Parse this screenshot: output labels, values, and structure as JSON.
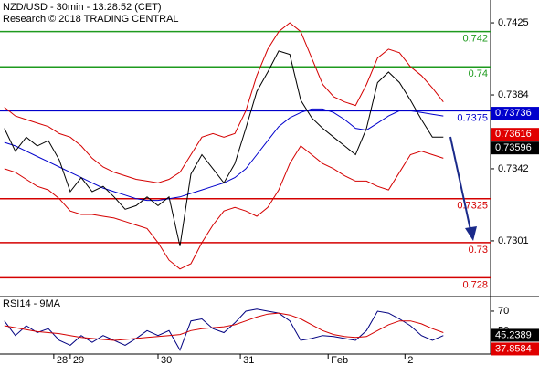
{
  "chart_data": [
    {
      "type": "line",
      "title": "NZD/USD - 30min - 13:28:52 (CET)",
      "subtitle": "Research © 2018 TRADING CENTRAL",
      "x": [
        0,
        1,
        2,
        3,
        4,
        5,
        6,
        7,
        8,
        9,
        10,
        11,
        12,
        13,
        14,
        15,
        16,
        17,
        18,
        19,
        20,
        21,
        22,
        23,
        24,
        25,
        26,
        27,
        28,
        29,
        30,
        31,
        32,
        33,
        34,
        35,
        36,
        37,
        38,
        39,
        40
      ],
      "xlim": [
        -0.4,
        44.3
      ],
      "ylim": [
        0.72693,
        0.7438
      ],
      "yticks": [
        0.7425,
        0.7384,
        0.7342,
        0.7301
      ],
      "series": [
        {
          "color": "#d40000",
          "values": [
            0.7377,
            0.7372,
            0.737,
            0.7368,
            0.7366,
            0.7362,
            0.736,
            0.7355,
            0.7348,
            0.7343,
            0.734,
            0.7338,
            0.7336,
            0.7335,
            0.7334,
            0.7336,
            0.734,
            0.735,
            0.736,
            0.7362,
            0.736,
            0.7362,
            0.7375,
            0.7395,
            0.741,
            0.742,
            0.7425,
            0.742,
            0.7405,
            0.739,
            0.7383,
            0.738,
            0.7378,
            0.739,
            0.7405,
            0.741,
            0.7408,
            0.74,
            0.7395,
            0.7388,
            0.738
          ]
        },
        {
          "color": "#d40000",
          "values": [
            0.7342,
            0.734,
            0.7336,
            0.7332,
            0.733,
            0.7325,
            0.7318,
            0.7316,
            0.7316,
            0.7315,
            0.7314,
            0.7312,
            0.731,
            0.7308,
            0.73,
            0.729,
            0.7285,
            0.7288,
            0.73,
            0.731,
            0.7318,
            0.732,
            0.7318,
            0.7315,
            0.732,
            0.733,
            0.7345,
            0.7355,
            0.735,
            0.7345,
            0.7342,
            0.7338,
            0.7335,
            0.7335,
            0.7332,
            0.733,
            0.734,
            0.735,
            0.7352,
            0.735,
            0.7348
          ]
        },
        {
          "color": "#0000cc",
          "values": [
            0.7357,
            0.7355,
            0.7352,
            0.7349,
            0.7346,
            0.7343,
            0.734,
            0.7337,
            0.7334,
            0.7331,
            0.7329,
            0.7327,
            0.7325,
            0.7324,
            0.7324,
            0.7325,
            0.7326,
            0.7328,
            0.733,
            0.7332,
            0.7334,
            0.7337,
            0.7342,
            0.735,
            0.7358,
            0.7366,
            0.7371,
            0.7374,
            0.7376,
            0.7376,
            0.7374,
            0.737,
            0.7365,
            0.7364,
            0.7368,
            0.7372,
            0.7375,
            0.7375,
            0.7374,
            0.7373,
            0.7372
          ]
        },
        {
          "color": "#000000",
          "values": [
            0.7365,
            0.7352,
            0.736,
            0.7355,
            0.7358,
            0.7347,
            0.7329,
            0.7337,
            0.7329,
            0.7332,
            0.7326,
            0.7319,
            0.7321,
            0.7326,
            0.7321,
            0.7326,
            0.7298,
            0.7339,
            0.735,
            0.7342,
            0.7334,
            0.7345,
            0.7365,
            0.7386,
            0.7397,
            0.7409,
            0.7407,
            0.7381,
            0.7371,
            0.7365,
            0.736,
            0.7355,
            0.735,
            0.7365,
            0.7391,
            0.7397,
            0.7391,
            0.7381,
            0.737,
            0.736,
            0.736
          ]
        }
      ],
      "levels": [
        {
          "value": 0.742,
          "color": "#1e9a1e"
        },
        {
          "value": 0.74,
          "color": "#1e9a1e"
        },
        {
          "value": 0.7375,
          "color": "#0000cc"
        },
        {
          "value": 0.7325,
          "color": "#d40000"
        },
        {
          "value": 0.73,
          "color": "#d40000"
        },
        {
          "value": 0.728,
          "color": "#d40000"
        }
      ],
      "markers": [
        {
          "value": 0.73736,
          "color": "#0000cc"
        },
        {
          "value": 0.73616,
          "color": "#e00000"
        },
        {
          "value": 0.73596,
          "color": "#000000"
        }
      ]
    },
    {
      "type": "line",
      "title": "RSI14 - 9MA",
      "x": [
        0,
        1,
        2,
        3,
        4,
        5,
        6,
        7,
        8,
        9,
        10,
        11,
        12,
        13,
        14,
        15,
        16,
        17,
        18,
        19,
        20,
        21,
        22,
        23,
        24,
        25,
        26,
        27,
        28,
        29,
        30,
        31,
        32,
        33,
        34,
        35,
        36,
        37,
        38,
        39,
        40
      ],
      "xlim": [
        -0.4,
        44.3
      ],
      "ylim": [
        26,
        84
      ],
      "yticks": [
        70,
        50
      ],
      "xticks": [
        {
          "value": 4.5,
          "label": "28"
        },
        {
          "value": 6,
          "label": "29"
        },
        {
          "value": 14,
          "label": "30"
        },
        {
          "value": 21.5,
          "label": "31"
        },
        {
          "value": 29.5,
          "label": "Feb"
        },
        {
          "value": 36.5,
          "label": "2"
        }
      ],
      "series": [
        {
          "color": "#000080",
          "values": [
            60,
            45,
            55,
            48,
            52,
            40,
            35,
            45,
            38,
            45,
            40,
            35,
            42,
            50,
            45,
            50,
            30,
            60,
            62,
            52,
            48,
            58,
            70,
            72,
            70,
            68,
            60,
            40,
            42,
            45,
            44,
            42,
            40,
            50,
            70,
            68,
            62,
            55,
            45,
            40,
            45
          ]
        },
        {
          "color": "#d40000",
          "values": [
            55,
            53,
            51,
            49,
            48,
            47,
            45,
            43,
            42,
            41,
            40,
            41,
            42,
            43,
            44,
            45,
            46,
            50,
            52,
            53,
            54,
            56,
            60,
            64,
            67,
            68,
            66,
            62,
            56,
            50,
            46,
            44,
            43,
            44,
            50,
            56,
            60,
            60,
            57,
            52,
            48
          ]
        }
      ],
      "markers": [
        {
          "value": 45.2389,
          "color": "#000000"
        },
        {
          "value": 37.8584,
          "color": "#e00000"
        }
      ]
    }
  ]
}
